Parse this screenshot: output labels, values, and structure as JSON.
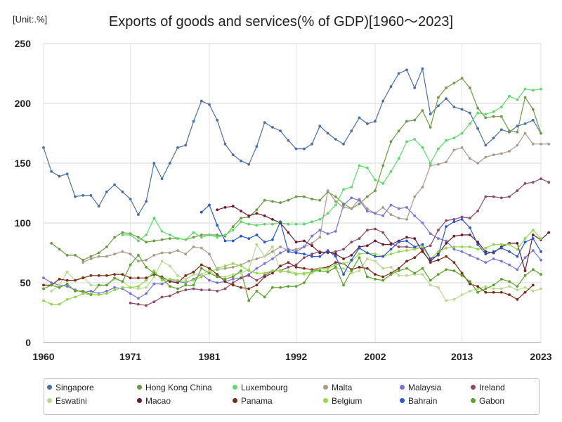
{
  "chart_data": {
    "type": "line",
    "title": "Exports of goods and services(% of GDP)[1960～2023]",
    "unit_label": "[Unit:.%]",
    "xlim": [
      1960,
      2023
    ],
    "ylim": [
      0,
      250
    ],
    "x_ticks": [
      "1960",
      "1971",
      "1981",
      "1992",
      "2002",
      "2013",
      "2023"
    ],
    "x_tick_values": [
      1960,
      1971,
      1981,
      1992,
      2002,
      2013,
      2023
    ],
    "y_ticks": [
      "0",
      "50",
      "100",
      "150",
      "200",
      "250"
    ],
    "y_tick_values": [
      0,
      50,
      100,
      150,
      200,
      250
    ],
    "grid": true,
    "legend_position": "bottom",
    "series": [
      {
        "name": "Singapore",
        "color": "#4a6fa5",
        "start": 1960,
        "values": [
          163,
          143,
          139,
          141,
          122,
          123,
          123,
          114,
          126,
          132,
          126,
          120,
          107,
          118,
          150,
          137,
          150,
          163,
          165,
          185,
          202,
          199,
          186,
          166,
          157,
          152,
          149,
          164,
          184,
          180,
          177,
          169,
          162,
          162,
          166,
          181,
          175,
          170,
          166,
          177,
          188,
          183,
          185,
          202,
          214,
          225,
          228,
          213,
          229,
          191,
          198,
          204,
          197,
          195,
          192,
          179,
          165,
          171,
          178,
          176,
          181,
          183,
          186,
          175
        ]
      },
      {
        "name": "Hong Kong China",
        "color": "#6b9b43",
        "start": 1961,
        "values": [
          83,
          78,
          73,
          73,
          69,
          72,
          75,
          80,
          88,
          92,
          91,
          88,
          84,
          85,
          86,
          87,
          87,
          86,
          88,
          90,
          90,
          90,
          89,
          97,
          104,
          105,
          111,
          119,
          118,
          117,
          119,
          122,
          122,
          120,
          119,
          126,
          122,
          116,
          112,
          116,
          122,
          127,
          148,
          168,
          177,
          185,
          186,
          194,
          180,
          205,
          213,
          217,
          221,
          213,
          196,
          188,
          189,
          189,
          177,
          176,
          205,
          195,
          175
        ]
      },
      {
        "name": "Luxembourg",
        "color": "#5ddb6a",
        "start": 1970,
        "values": [
          90,
          90,
          85,
          90,
          104,
          93,
          90,
          87,
          86,
          92,
          88,
          90,
          88,
          90,
          94,
          101,
          99,
          98,
          99,
          99,
          100,
          99,
          99,
          99,
          101,
          103,
          108,
          115,
          128,
          130,
          148,
          146,
          136,
          133,
          143,
          154,
          168,
          170,
          163,
          150,
          162,
          169,
          171,
          175,
          183,
          192,
          191,
          193,
          197,
          206,
          203,
          212,
          211,
          212
        ]
      },
      {
        "name": "Malta",
        "color": "#aa9a8a",
        "start": 1965,
        "values": [
          67,
          70,
          72,
          72,
          74,
          76,
          74,
          68,
          69,
          73,
          75,
          75,
          77,
          74,
          80,
          79,
          74,
          61,
          62,
          63,
          65,
          68,
          70,
          72,
          76,
          80,
          77,
          78,
          80,
          83,
          88,
          127,
          118,
          113,
          112,
          120,
          112,
          108,
          113,
          107,
          104,
          103,
          122,
          130,
          148,
          149,
          151,
          161,
          163,
          154,
          150,
          155,
          157,
          158,
          160,
          165,
          175,
          166,
          166,
          166
        ]
      },
      {
        "name": "Malaysia",
        "color": "#7b73d6",
        "start": 1960,
        "values": [
          54,
          50,
          48,
          47,
          44,
          42,
          43,
          41,
          43,
          46,
          45,
          41,
          37,
          41,
          49,
          49,
          52,
          51,
          50,
          53,
          57,
          52,
          50,
          51,
          53,
          54,
          57,
          62,
          66,
          70,
          75,
          78,
          76,
          80,
          89,
          94,
          91,
          93,
          115,
          121,
          119,
          110,
          108,
          106,
          115,
          112,
          113,
          106,
          100,
          91,
          87,
          85,
          78,
          76,
          73,
          70,
          67,
          70,
          68,
          65,
          61,
          71,
          77,
          69
        ]
      },
      {
        "name": "Ireland",
        "color": "#8c4a6b",
        "start": 1971,
        "values": [
          33,
          32,
          31,
          34,
          38,
          39,
          42,
          44,
          45,
          44,
          44,
          43,
          45,
          50,
          54,
          56,
          52,
          56,
          60,
          60,
          63,
          65,
          71,
          74,
          76,
          75,
          76,
          78,
          84,
          87,
          94,
          95,
          92,
          83,
          80,
          80,
          79,
          79,
          81,
          94,
          102,
          103,
          105,
          104,
          110,
          122,
          122,
          121,
          122,
          127,
          133,
          134,
          137,
          134
        ]
      },
      {
        "name": "Eswatini",
        "color": "#b9d98c",
        "start": 1961,
        "values": [
          43,
          48,
          59,
          52,
          55,
          48,
          48,
          48,
          53,
          51,
          46,
          45,
          46,
          55,
          68,
          64,
          56,
          53,
          57,
          57,
          60,
          55,
          55,
          57,
          58,
          61,
          82,
          72,
          80,
          59,
          60,
          58,
          57,
          58,
          62,
          60,
          62,
          62,
          58,
          60,
          70,
          68,
          62,
          63,
          56,
          56,
          57,
          57,
          48,
          46,
          35,
          36,
          40,
          43,
          45,
          47,
          45,
          45,
          47,
          44,
          46,
          43,
          45
        ]
      },
      {
        "name": "Macao",
        "color": "#6b1a2e",
        "start": 1982,
        "values": [
          111,
          113,
          114,
          110,
          106,
          108,
          106,
          103,
          100,
          92,
          84,
          85,
          81,
          75,
          76,
          74,
          70,
          73,
          80,
          81,
          85,
          82,
          82,
          85,
          88,
          87,
          76,
          68,
          74,
          83,
          89,
          90,
          90,
          84,
          76,
          75,
          80,
          83,
          83,
          60,
          90,
          86,
          92
        ]
      },
      {
        "name": "Panama",
        "color": "#7a2a15",
        "start": 1960,
        "values": [
          48,
          48,
          53,
          52,
          52,
          54,
          56,
          56,
          56,
          57,
          57,
          54,
          54,
          54,
          57,
          55,
          51,
          50,
          56,
          59,
          65,
          62,
          57,
          51,
          48,
          46,
          45,
          48,
          55,
          58,
          64,
          67,
          63,
          62,
          61,
          62,
          63,
          67,
          66,
          61,
          63,
          62,
          57,
          55,
          58,
          62,
          68,
          71,
          77,
          67,
          69,
          72,
          67,
          58,
          49,
          47,
          42,
          42,
          42,
          40,
          36,
          42,
          48
        ]
      },
      {
        "name": "Belgium",
        "color": "#8fd94f",
        "start": 1960,
        "values": [
          35,
          32,
          32,
          36,
          38,
          41,
          40,
          40,
          41,
          44,
          46,
          46,
          47,
          52,
          60,
          52,
          53,
          52,
          51,
          52,
          55,
          58,
          62,
          64,
          66,
          64,
          60,
          58,
          58,
          60,
          60,
          59,
          57,
          58,
          59,
          62,
          62,
          65,
          66,
          68,
          74,
          75,
          74,
          72,
          74,
          76,
          77,
          78,
          80,
          70,
          76,
          79,
          80,
          80,
          80,
          78,
          79,
          82,
          82,
          82,
          78,
          87,
          94,
          87
        ]
      },
      {
        "name": "Bahrain",
        "color": "#2957cc",
        "start": 1980,
        "values": [
          109,
          115,
          98,
          85,
          85,
          89,
          87,
          90,
          84,
          86,
          101,
          76,
          75,
          74,
          72,
          72,
          77,
          72,
          57,
          69,
          79,
          75,
          72,
          72,
          78,
          84,
          85,
          80,
          82,
          70,
          73,
          97,
          101,
          103,
          96,
          82,
          74,
          76,
          79,
          76,
          72,
          84,
          87,
          76
        ]
      },
      {
        "name": "Gabon",
        "color": "#5aa32b",
        "start": 1960,
        "values": [
          45,
          48,
          46,
          49,
          43,
          43,
          40,
          48,
          48,
          54,
          51,
          65,
          73,
          63,
          58,
          54,
          47,
          45,
          48,
          48,
          62,
          58,
          55,
          53,
          55,
          60,
          35,
          43,
          38,
          46,
          46,
          47,
          47,
          50,
          60,
          60,
          59,
          63,
          48,
          60,
          71,
          55,
          53,
          52,
          57,
          60,
          62,
          58,
          62,
          52,
          57,
          61,
          60,
          56,
          51,
          42,
          45,
          48,
          53,
          51,
          47,
          56,
          61,
          57
        ]
      }
    ]
  }
}
